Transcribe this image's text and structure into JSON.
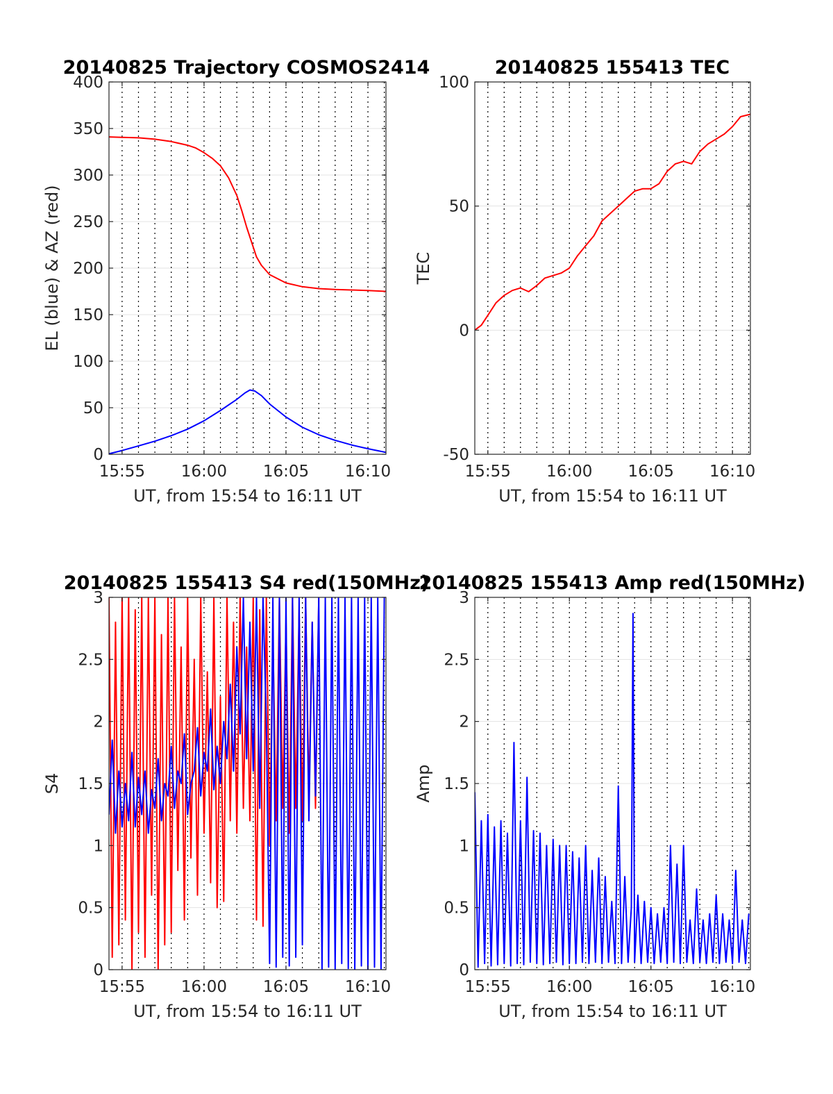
{
  "chart_data": [
    {
      "type": "line",
      "title": "20140825 Trajectory COSMOS2414",
      "xlabel": "UT, from 15:54 to 16:11 UT",
      "ylabel": "EL (blue) & AZ (red)",
      "x_unit": "minutes",
      "xlim": [
        954.2,
        971.1
      ],
      "ylim": [
        0,
        400
      ],
      "xticks": [
        {
          "v": 955,
          "label": "15:55"
        },
        {
          "v": 960,
          "label": "16:00"
        },
        {
          "v": 965,
          "label": "16:05"
        },
        {
          "v": 970,
          "label": "16:10"
        }
      ],
      "yticks": [
        {
          "v": 0,
          "label": "0"
        },
        {
          "v": 50,
          "label": "50"
        },
        {
          "v": 100,
          "label": "100"
        },
        {
          "v": 150,
          "label": "150"
        },
        {
          "v": 200,
          "label": "200"
        },
        {
          "v": 250,
          "label": "250"
        },
        {
          "v": 300,
          "label": "300"
        },
        {
          "v": 350,
          "label": "350"
        },
        {
          "v": 400,
          "label": "400"
        }
      ],
      "grid": "x-dotted-per-minute, y-horizontal",
      "series": [
        {
          "color": "#ff0000",
          "x": [
            954.2,
            955,
            956,
            957,
            958,
            959,
            959.5,
            960,
            960.5,
            961,
            961.5,
            962,
            962.3,
            962.6,
            962.9,
            963.2,
            963.5,
            964,
            965,
            966,
            967,
            968,
            969,
            970,
            971.1
          ],
          "y": [
            341,
            340.5,
            340,
            338.5,
            336,
            332,
            329,
            324,
            318,
            310,
            297,
            278,
            262,
            244,
            228,
            212,
            203,
            193,
            184,
            180,
            178,
            177,
            176.5,
            176,
            175
          ]
        },
        {
          "color": "#0000ff",
          "x": [
            954.2,
            955,
            956,
            957,
            958,
            959,
            960,
            961,
            962,
            962.5,
            962.8,
            963.1,
            963.5,
            964,
            965,
            966,
            967,
            968,
            969,
            970,
            971.1
          ],
          "y": [
            0.5,
            4,
            9,
            14,
            20,
            27,
            36,
            47,
            59,
            66,
            69,
            68,
            63,
            54,
            40,
            29,
            21,
            15,
            10,
            6,
            2
          ]
        }
      ]
    },
    {
      "type": "line",
      "title": "20140825 155413 TEC",
      "xlabel": "UT, from 15:54 to 16:11 UT",
      "ylabel": "TEC",
      "x_unit": "minutes",
      "xlim": [
        954.2,
        971.1
      ],
      "ylim": [
        -50,
        100
      ],
      "xticks": [
        {
          "v": 955,
          "label": "15:55"
        },
        {
          "v": 960,
          "label": "16:00"
        },
        {
          "v": 965,
          "label": "16:05"
        },
        {
          "v": 970,
          "label": "16:10"
        }
      ],
      "yticks": [
        {
          "v": -50,
          "label": "-50"
        },
        {
          "v": 0,
          "label": "0"
        },
        {
          "v": 50,
          "label": "50"
        },
        {
          "v": 100,
          "label": "100"
        }
      ],
      "grid": "x-dotted-per-minute, y-horizontal",
      "series": [
        {
          "color": "#ff0000",
          "x": [
            954.2,
            954.6,
            955,
            955.5,
            956,
            956.5,
            957,
            957.5,
            958,
            958.5,
            959,
            959.5,
            960,
            960.5,
            961,
            961.5,
            962,
            962.5,
            963,
            963.5,
            964,
            964.5,
            965,
            965.5,
            966,
            966.5,
            967,
            967.5,
            968,
            968.5,
            969,
            969.5,
            970,
            970.5,
            971.1
          ],
          "y": [
            0,
            2,
            6,
            11,
            14,
            16,
            17,
            15.5,
            18,
            21,
            22,
            23,
            25,
            30,
            34,
            38,
            44,
            47,
            50,
            53,
            56,
            57,
            57,
            59,
            64,
            67,
            68,
            67,
            72,
            75,
            77,
            79,
            82,
            86,
            87
          ]
        }
      ]
    },
    {
      "type": "line",
      "title": "20140825 155413 S4 red(150MHz)",
      "xlabel": "UT, from 15:54 to 16:11 UT",
      "ylabel": "S4",
      "x_unit": "minutes",
      "xlim": [
        954.2,
        971.1
      ],
      "ylim": [
        0,
        3
      ],
      "xticks": [
        {
          "v": 955,
          "label": "15:55"
        },
        {
          "v": 960,
          "label": "16:00"
        },
        {
          "v": 965,
          "label": "16:05"
        },
        {
          "v": 970,
          "label": "16:10"
        }
      ],
      "yticks": [
        {
          "v": 0,
          "label": "0"
        },
        {
          "v": 0.5,
          "label": "0.5"
        },
        {
          "v": 1,
          "label": "1"
        },
        {
          "v": 1.5,
          "label": "1.5"
        },
        {
          "v": 2,
          "label": "2"
        },
        {
          "v": 2.5,
          "label": "2.5"
        },
        {
          "v": 3,
          "label": "3"
        }
      ],
      "grid": "x-dotted-per-minute, y-horizontal",
      "series": [
        {
          "color": "#ff0000",
          "x": [
            954.2,
            954.4,
            954.6,
            954.8,
            955.0,
            955.2,
            955.4,
            955.6,
            955.8,
            956.0,
            956.2,
            956.4,
            956.6,
            956.8,
            957.0,
            957.2,
            957.4,
            957.6,
            957.8,
            958.0,
            958.2,
            958.4,
            958.6,
            958.8,
            959.0,
            959.2,
            959.4,
            959.6,
            959.8,
            960.0,
            960.2,
            960.4,
            960.6,
            960.8,
            961.0,
            961.2,
            961.4,
            961.6,
            961.8,
            962.0,
            962.2,
            962.4,
            962.6,
            962.8,
            963.0,
            963.2,
            963.4,
            963.6,
            963.8,
            964.0,
            964.2,
            964.4,
            964.6,
            964.8,
            965.0,
            965.2,
            965.4,
            965.6,
            965.8,
            966.0,
            966.2,
            966.4,
            966.6,
            966.8,
            967.0
          ],
          "y": [
            3,
            0.1,
            2.8,
            0.2,
            3,
            0.4,
            3,
            0,
            2.9,
            0.3,
            3,
            0.1,
            3,
            0.6,
            3,
            0,
            2.7,
            0.2,
            3,
            0.3,
            3,
            0.8,
            2.6,
            0.4,
            3,
            0.9,
            2.5,
            0.6,
            3,
            1.1,
            2.4,
            0.7,
            3,
            0.5,
            2.2,
            0.55,
            3,
            1.2,
            2.8,
            1.1,
            3,
            1.3,
            2.6,
            1.2,
            3,
            0.4,
            2.9,
            0.35,
            3,
            1.0,
            2.7,
            1.2,
            3,
            1.3,
            2.8,
            1.1,
            3,
            1.3,
            2.9,
            1.2,
            3,
            1.4,
            2.8,
            1.3,
            3
          ]
        },
        {
          "color": "#0000ff",
          "x": [
            954.2,
            954.4,
            954.6,
            954.8,
            955.0,
            955.2,
            955.4,
            955.6,
            955.8,
            956.0,
            956.2,
            956.4,
            956.6,
            956.8,
            957.0,
            957.2,
            957.4,
            957.6,
            957.8,
            958.0,
            958.2,
            958.4,
            958.6,
            958.8,
            959.0,
            959.2,
            959.4,
            959.6,
            959.8,
            960.0,
            960.2,
            960.4,
            960.6,
            960.8,
            961.0,
            961.2,
            961.4,
            961.6,
            961.8,
            962.0,
            962.2,
            962.4,
            962.6,
            962.8,
            963.0,
            963.2,
            963.4,
            963.6,
            963.8,
            964.0,
            964.2,
            964.4,
            964.6,
            964.8,
            965.0,
            965.2,
            965.4,
            965.6,
            965.8,
            966.0,
            966.2,
            966.4,
            966.6,
            966.8,
            967.0,
            967.2,
            967.4,
            967.6,
            967.8,
            968.0,
            968.2,
            968.4,
            968.6,
            968.8,
            969.0,
            969.2,
            969.4,
            969.6,
            969.8,
            970.0,
            970.2,
            970.4,
            970.6,
            970.8,
            971.0
          ],
          "y": [
            1.25,
            1.85,
            1.1,
            1.6,
            1.15,
            1.5,
            1.2,
            1.75,
            1.15,
            1.55,
            1.25,
            1.6,
            1.1,
            1.45,
            1.3,
            1.7,
            1.2,
            1.5,
            1.4,
            1.8,
            1.3,
            1.6,
            1.5,
            1.9,
            1.25,
            1.5,
            1.6,
            1.95,
            1.4,
            1.75,
            1.6,
            2.1,
            1.45,
            1.8,
            1.5,
            2.0,
            1.7,
            2.3,
            1.6,
            2.6,
            1.9,
            3,
            1.7,
            2.8,
            1.6,
            3,
            1.3,
            3,
            2.0,
            0.05,
            3,
            0.02,
            3,
            0.1,
            3,
            0.03,
            3,
            0.1,
            3,
            0.2,
            3,
            1.2,
            2.8,
            1.4,
            3,
            0.0,
            3,
            0.02,
            3,
            0.0,
            3,
            0.05,
            3,
            0.01,
            3,
            0.0,
            3,
            0.03,
            3,
            0.0,
            3,
            0.02,
            3,
            0.0,
            3
          ]
        }
      ]
    },
    {
      "type": "line",
      "title": "20140825 155413 Amp red(150MHz)",
      "xlabel": "UT, from 15:54 to 16:11 UT",
      "ylabel": "Amp",
      "x_unit": "minutes",
      "xlim": [
        954.2,
        971.1
      ],
      "ylim": [
        0,
        3
      ],
      "xticks": [
        {
          "v": 955,
          "label": "15:55"
        },
        {
          "v": 960,
          "label": "16:00"
        },
        {
          "v": 965,
          "label": "16:05"
        },
        {
          "v": 970,
          "label": "16:10"
        }
      ],
      "yticks": [
        {
          "v": 0,
          "label": "0"
        },
        {
          "v": 0.5,
          "label": "0.5"
        },
        {
          "v": 1,
          "label": "1"
        },
        {
          "v": 1.5,
          "label": "1.5"
        },
        {
          "v": 2,
          "label": "2"
        },
        {
          "v": 2.5,
          "label": "2.5"
        },
        {
          "v": 3,
          "label": "3"
        }
      ],
      "grid": "x-dotted-per-minute, y-horizontal",
      "series": [
        {
          "color": "#0000ff",
          "x": [
            954.2,
            954.4,
            954.6,
            954.8,
            955.0,
            955.2,
            955.4,
            955.6,
            955.8,
            956.0,
            956.2,
            956.4,
            956.6,
            956.8,
            957.0,
            957.2,
            957.4,
            957.6,
            957.8,
            958.0,
            958.2,
            958.4,
            958.6,
            958.8,
            959.0,
            959.2,
            959.4,
            959.6,
            959.8,
            960.0,
            960.2,
            960.4,
            960.6,
            960.8,
            961.0,
            961.2,
            961.4,
            961.6,
            961.8,
            962.0,
            962.2,
            962.4,
            962.6,
            962.8,
            963.0,
            963.2,
            963.4,
            963.6,
            963.8,
            963.9,
            964.0,
            964.2,
            964.4,
            964.6,
            964.8,
            965.0,
            965.2,
            965.4,
            965.6,
            965.8,
            966.0,
            966.2,
            966.4,
            966.6,
            966.8,
            967.0,
            967.2,
            967.4,
            967.6,
            967.8,
            968.0,
            968.2,
            968.4,
            968.6,
            968.8,
            969.0,
            969.2,
            969.4,
            969.6,
            969.8,
            970.0,
            970.2,
            970.4,
            970.6,
            970.8,
            971.0
          ],
          "y": [
            1.43,
            0.02,
            1.2,
            0.05,
            1.25,
            0.03,
            1.15,
            0.04,
            1.2,
            0.05,
            1.1,
            0.03,
            1.83,
            0.05,
            1.2,
            0.04,
            1.55,
            0.06,
            1.12,
            0.05,
            1.1,
            0.04,
            1.0,
            0.05,
            1.05,
            0.06,
            1.0,
            0.04,
            1.0,
            0.05,
            0.95,
            0.05,
            0.9,
            0.06,
            1.0,
            0.05,
            0.8,
            0.06,
            0.9,
            0.05,
            0.75,
            0.06,
            0.55,
            0.05,
            1.48,
            0.05,
            0.75,
            0.06,
            0.5,
            2.87,
            0.06,
            0.6,
            0.05,
            0.55,
            0.06,
            0.5,
            0.05,
            0.45,
            0.06,
            0.5,
            0.05,
            1.0,
            0.06,
            0.85,
            0.05,
            1.0,
            0.06,
            0.4,
            0.05,
            0.65,
            0.06,
            0.4,
            0.05,
            0.45,
            0.06,
            0.6,
            0.05,
            0.45,
            0.06,
            0.4,
            0.05,
            0.8,
            0.06,
            0.4,
            0.05,
            0.45
          ]
        }
      ]
    }
  ]
}
